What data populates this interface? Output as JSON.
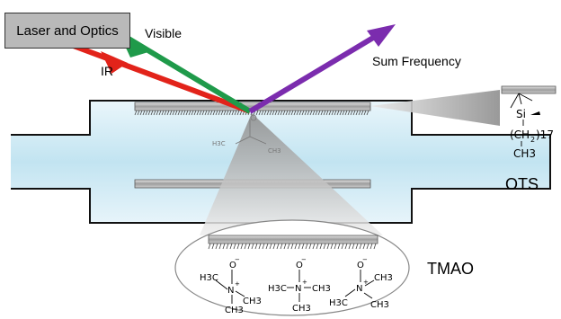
{
  "diagram": {
    "source_label": "Laser and Optics",
    "beams": {
      "visible": {
        "label": "Visible",
        "color": "#1f9a4a"
      },
      "ir": {
        "label": "IR",
        "color": "#e2231a"
      },
      "sum_frequency": {
        "label": "Sum Frequency",
        "color": "#7b2cae"
      }
    },
    "cell": {
      "liquid_color": "#cde9f4",
      "inner_label_1": "H3C",
      "inner_label_2": "CH3"
    },
    "ots": {
      "label": "OTS",
      "atom_si": "Si",
      "chain_main": "(CH",
      "chain_sub": "2",
      "chain_end": ")17",
      "terminal": "CH3"
    },
    "tmao": {
      "label": "TMAO",
      "o_minus": "O",
      "nitrogen": "N",
      "methyl_left": "H3C",
      "methyl_right": "CH3"
    }
  }
}
